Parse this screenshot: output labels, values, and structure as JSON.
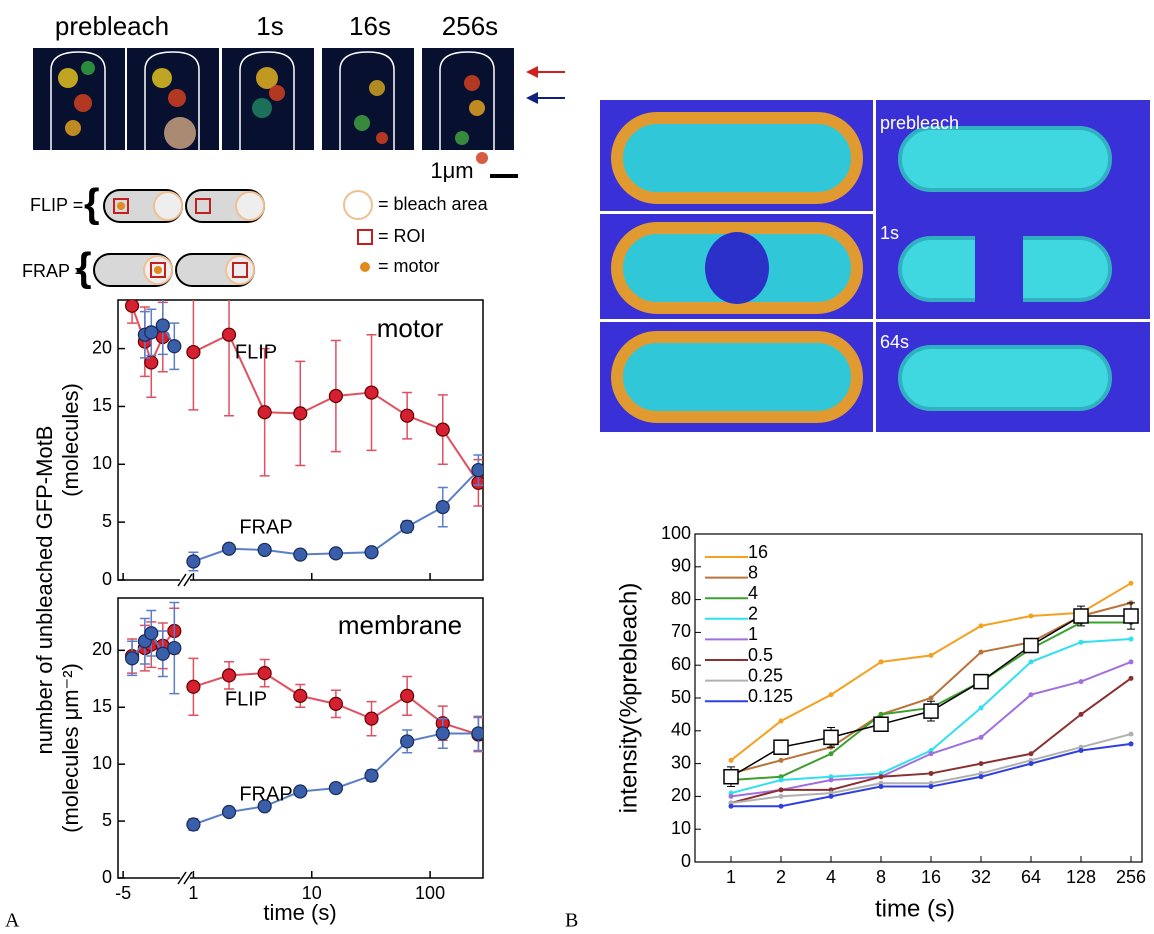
{
  "panel_labels": [
    "A",
    "B"
  ],
  "images_a": {
    "labels": [
      "prebleach",
      "1s",
      "16s",
      "256s"
    ],
    "scale_bar": "1μm"
  },
  "schematic": {
    "flip": "FLIP =",
    "frap": "FRAP =",
    "legend": [
      "= bleach area",
      "= ROI",
      "= motor"
    ]
  },
  "images_b": {
    "labels": [
      "prebleach",
      "1s",
      "64s"
    ]
  },
  "shared_ylabel": "number of unbleached GFP-MotB",
  "chart_data": [
    {
      "type": "line",
      "annotation": "motor",
      "ylabel": "(molecules)",
      "xscale": "log",
      "xlim_pre": [
        -5.4,
        -0.4
      ],
      "xlim": [
        0.9,
        280
      ],
      "xticks": [
        -5,
        1,
        10,
        100
      ],
      "ylim": [
        0,
        24.2
      ],
      "yticks": [
        0,
        5,
        10,
        15,
        20
      ],
      "series": [
        {
          "name": "FLIP",
          "color": "#d42030",
          "x": [
            -4.3,
            -3.3,
            -2.8,
            -1.9,
            null,
            1,
            2,
            4,
            8,
            16,
            32,
            64,
            128,
            256
          ],
          "values": [
            23.7,
            20.6,
            18.8,
            21.0,
            null,
            19.7,
            21.2,
            14.5,
            14.4,
            15.9,
            16.2,
            14.2,
            13.0,
            8.4
          ],
          "errors": [
            1.5,
            3,
            3,
            3,
            null,
            5,
            7,
            5.5,
            4.5,
            4.8,
            5,
            2,
            3,
            2
          ]
        },
        {
          "name": "FRAP",
          "color": "#3a5faa",
          "x": [
            -3.3,
            -2.8,
            -1.9,
            -1.0,
            null,
            1,
            2,
            4,
            8,
            16,
            32,
            64,
            128,
            256
          ],
          "values": [
            21.2,
            21.4,
            22.0,
            20.2,
            null,
            1.6,
            2.7,
            2.6,
            2.2,
            2.3,
            2.4,
            4.6,
            6.3,
            9.5
          ],
          "errors": [
            2,
            2,
            2.5,
            2,
            null,
            0.8,
            0.3,
            0.3,
            0.3,
            0.3,
            0.3,
            0.5,
            1.7,
            1.3
          ]
        }
      ]
    },
    {
      "type": "line",
      "annotation": "membrane",
      "ylabel": "(molecules μm⁻²)",
      "xlabel": "time (s)",
      "xscale": "log",
      "xlim_pre": [
        -5.4,
        -0.4
      ],
      "xlim": [
        0.9,
        280
      ],
      "xticks": [
        -5,
        1,
        10,
        100
      ],
      "ylim": [
        0,
        24.6
      ],
      "yticks": [
        0,
        5,
        10,
        15,
        20
      ],
      "series": [
        {
          "name": "FLIP",
          "color": "#d42030",
          "x": [
            -4.3,
            -3.3,
            -2.8,
            -1.9,
            -1.0,
            null,
            1,
            2,
            4,
            8,
            16,
            32,
            64,
            128,
            256
          ],
          "values": [
            19.5,
            20.2,
            20.5,
            20.4,
            21.7,
            null,
            16.8,
            17.8,
            18.0,
            16.0,
            15.3,
            14.0,
            16.0,
            13.6,
            12.6
          ],
          "errors": [
            1.5,
            2,
            2,
            2,
            2,
            null,
            2.5,
            1.2,
            1.2,
            1.0,
            1.2,
            1.5,
            1.7,
            1.5,
            1.5
          ]
        },
        {
          "name": "FRAP",
          "color": "#3a5faa",
          "x": [
            -4.3,
            -3.3,
            -2.8,
            -1.9,
            -1.0,
            null,
            1,
            2,
            4,
            8,
            16,
            32,
            64,
            128,
            256
          ],
          "values": [
            19.3,
            20.8,
            21.5,
            19.7,
            20.2,
            null,
            4.7,
            5.8,
            6.3,
            7.6,
            7.9,
            9.0,
            12.0,
            12.7,
            12.7
          ],
          "errors": [
            1.5,
            2,
            2,
            2,
            4,
            null,
            0.5,
            0.3,
            0.4,
            0.3,
            0.4,
            0.5,
            1.0,
            1.3,
            1.5
          ]
        }
      ]
    },
    {
      "type": "line",
      "ylabel": "intensity(%prebleach)",
      "xlabel": "time (s)",
      "categories": [
        "1",
        "2",
        "4",
        "8",
        "16",
        "32",
        "64",
        "128",
        "256"
      ],
      "ylim": [
        0,
        100
      ],
      "yticks": [
        0,
        10,
        20,
        30,
        40,
        50,
        60,
        70,
        80,
        90,
        100
      ],
      "series": [
        {
          "name": "16",
          "color": "#f4a020",
          "values": [
            31,
            43,
            51,
            61,
            63,
            72,
            75,
            76,
            85
          ]
        },
        {
          "name": "8",
          "color": "#b8743a",
          "values": [
            27,
            31,
            35,
            45,
            50,
            64,
            67,
            75,
            79
          ]
        },
        {
          "name": "4",
          "color": "#3ca030",
          "values": [
            25,
            26,
            33,
            45,
            47,
            55,
            65,
            73,
            73
          ]
        },
        {
          "name": "2",
          "color": "#30e0f0",
          "values": [
            21,
            25,
            26,
            27,
            34,
            47,
            61,
            67,
            68
          ]
        },
        {
          "name": "1",
          "color": "#a070e0",
          "values": [
            20,
            22,
            25,
            26,
            33,
            38,
            51,
            55,
            61
          ]
        },
        {
          "name": "0.5",
          "color": "#8b3030",
          "values": [
            18,
            22,
            22,
            26,
            27,
            30,
            33,
            45,
            56
          ]
        },
        {
          "name": "0.25",
          "color": "#b0b0b0",
          "values": [
            18,
            20,
            21,
            24,
            24,
            27,
            31,
            35,
            39
          ]
        },
        {
          "name": "0.125",
          "color": "#3040e0",
          "values": [
            17,
            17,
            20,
            23,
            23,
            26,
            30,
            34,
            36
          ]
        },
        {
          "color": "#000000",
          "values": [
            26,
            35,
            38,
            42,
            46,
            55,
            66,
            75,
            75
          ],
          "errors": [
            3,
            2,
            3,
            2,
            3,
            1,
            2,
            3,
            4
          ]
        }
      ]
    }
  ]
}
